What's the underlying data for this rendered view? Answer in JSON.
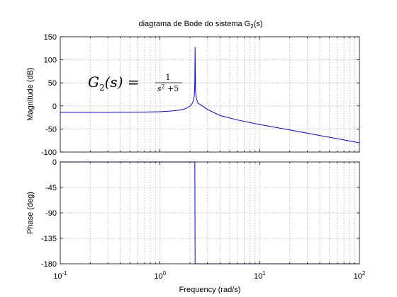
{
  "chart_data": [
    {
      "type": "line",
      "panel": "magnitude",
      "title": "diagrama de Bode do sistema G",
      "title_subscript": "2",
      "title_suffix": "(s)",
      "ylabel": "Magnitude (dB)",
      "xlabel": "",
      "x_scale": "log",
      "xlim": [
        0.1,
        100
      ],
      "ylim": [
        -100,
        150
      ],
      "yticks": [
        "-100",
        "-50",
        "0",
        "50",
        "100",
        "150"
      ],
      "grid": true,
      "annotation": {
        "lhs_main": "G",
        "lhs_sub": "2",
        "lhs_arg": "(s) =",
        "numerator": "1",
        "denominator_base": "s",
        "denominator_exp": "2",
        "denominator_rest": " +5"
      },
      "series": [
        {
          "color": "#0000ff",
          "x": [
            0.1,
            0.3,
            0.6,
            1.0,
            1.3,
            1.6,
            1.8,
            2.0,
            2.1,
            2.15,
            2.2,
            2.22,
            2.235,
            2.25,
            2.27,
            2.3,
            2.4,
            2.6,
            3.0,
            4.0,
            6.0,
            10,
            20,
            40,
            70,
            100
          ],
          "y": [
            -14,
            -14,
            -13.6,
            -12.6,
            -11.1,
            -8.7,
            -6.0,
            -0.5,
            5.0,
            10.5,
            19.5,
            30.0,
            55.0,
            128.0,
            33.0,
            19.0,
            6.0,
            1.5,
            -7.8,
            -20.8,
            -30.5,
            -40.3,
            -52.1,
            -64.1,
            -73.8,
            -80.0
          ]
        }
      ]
    },
    {
      "type": "line",
      "panel": "phase",
      "ylabel": "Phase (deg)",
      "xlabel": "Frequency  (rad/s)",
      "x_scale": "log",
      "xlim": [
        0.1,
        100
      ],
      "ylim": [
        -180,
        0
      ],
      "yticks": [
        "-180",
        "-135",
        "-90",
        "-45",
        "0"
      ],
      "xticks": [
        {
          "base": "10",
          "exp": "-1"
        },
        {
          "base": "10",
          "exp": "0"
        },
        {
          "base": "10",
          "exp": "1"
        },
        {
          "base": "10",
          "exp": "2"
        }
      ],
      "grid": true,
      "series": [
        {
          "color": "#0000ff",
          "x": [
            0.1,
            2.23,
            2.236,
            2.25,
            100
          ],
          "y": [
            0,
            0,
            0,
            -180,
            -180
          ]
        }
      ]
    }
  ]
}
